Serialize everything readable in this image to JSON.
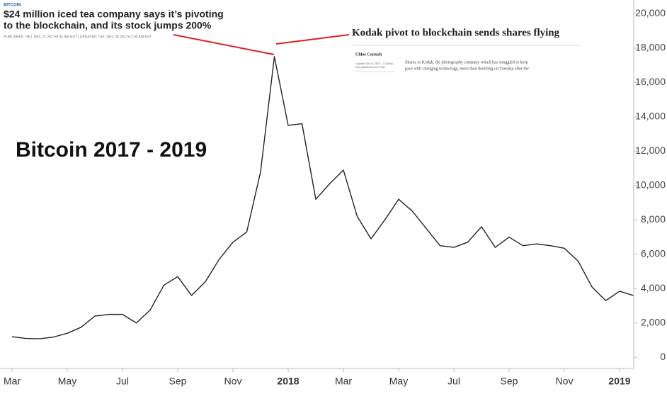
{
  "chart_data": {
    "type": "line",
    "title": "Bitcoin 2017 - 2019",
    "annotations": {
      "source": "BITCOIN",
      "headline": [
        "$24 million iced tea company says it’s pivoting",
        "to the blockchain, and its stock jumps 200%"
      ],
      "published": "PUBLISHED THU, DEC 21 2017•9:32 AM EST | UPDATED TUE, DEC 26 2017•11:03 AM EST",
      "kodak_headline": "Kodak pivot to blockchain sends shares flying",
      "author": "Chloe Cornish",
      "updated": [
        "Updated Jan 10, 2018 – 12:49am,",
        "first published at 10:17am"
      ],
      "snippet": [
        "Shares in Kodak, the photography company which has struggled to keep",
        "pace with changing technology, more than doubling on Tuesday after the"
      ]
    },
    "categories": [
      "Mar",
      null,
      null,
      null,
      "May",
      null,
      null,
      null,
      "Jul",
      null,
      null,
      null,
      "Sep",
      null,
      null,
      null,
      "Nov",
      null,
      null,
      null,
      "2018",
      null,
      null,
      null,
      "Mar",
      null,
      null,
      null,
      "May",
      null,
      null,
      null,
      "Jul",
      null,
      null,
      null,
      "Sep",
      null,
      null,
      null,
      "Nov",
      null,
      null,
      null,
      "2019",
      null
    ],
    "values": [
      1200,
      1100,
      1080,
      1180,
      1400,
      1750,
      2400,
      2500,
      2500,
      2000,
      2750,
      4200,
      4700,
      3600,
      4400,
      5700,
      6700,
      7300,
      10800,
      17500,
      13500,
      13600,
      9200,
      10100,
      10900,
      8200,
      6900,
      8000,
      9200,
      8500,
      7500,
      6500,
      6400,
      6700,
      7600,
      6400,
      7000,
      6500,
      6600,
      6500,
      6350,
      5600,
      4100,
      3300,
      3850,
      3600
    ],
    "color": "#222222",
    "ylim": [
      -650,
      20800
    ],
    "yticks": [
      0,
      {
        "value": 2000,
        "label": "2,000"
      },
      {
        "value": 4000,
        "label": "4,000"
      },
      {
        "value": 6000,
        "label": "6,000"
      },
      {
        "value": 8000,
        "label": "8,000"
      },
      {
        "value": 10000,
        "label": "10,000"
      },
      {
        "value": 12000,
        "label": "12,000"
      },
      {
        "value": 14000,
        "label": "14,000"
      },
      {
        "value": 16000,
        "label": "16,000"
      },
      {
        "value": 18000,
        "label": "18,000"
      },
      {
        "value": 20000,
        "label": "20,000"
      }
    ],
    "y_axis_side": "right",
    "grid": false
  }
}
